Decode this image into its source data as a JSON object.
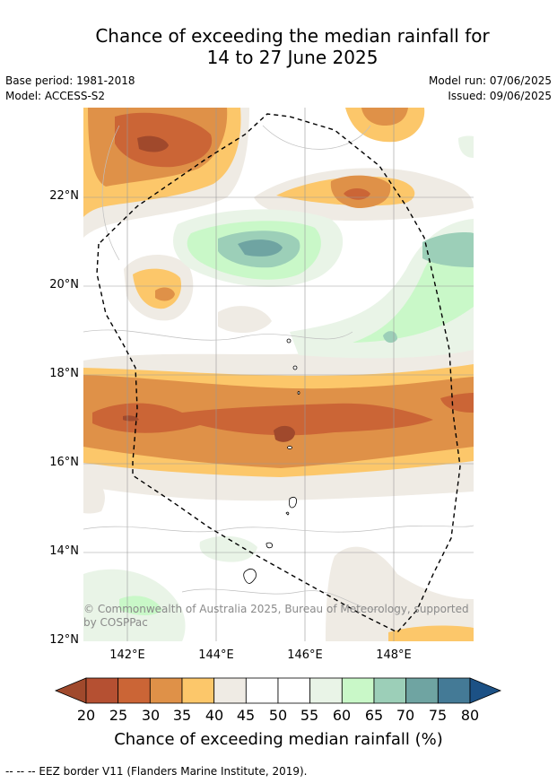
{
  "title_line1": "Chance of exceeding the median rainfall for",
  "title_line2": "14 to 27 June 2025",
  "left_meta": {
    "base_period": "Base period: 1981-2018",
    "model": "Model: ACCESS-S2"
  },
  "right_meta": {
    "model_run": "Model run: 07/06/2025",
    "issued": "Issued: 09/06/2025"
  },
  "lat_labels": [
    "22°N",
    "20°N",
    "18°N",
    "16°N",
    "14°N",
    "12°N"
  ],
  "lon_labels": [
    "142°E",
    "144°E",
    "146°E",
    "148°E"
  ],
  "copyright": "© Commonwealth of Australia 2025, Bureau of Meteorology, supported by COSPPac",
  "colorbar": {
    "ticks": [
      "20",
      "25",
      "30",
      "35",
      "40",
      "45",
      "50",
      "55",
      "60",
      "65",
      "70",
      "75",
      "80"
    ],
    "colors": [
      "#a0492c",
      "#b55032",
      "#cb6536",
      "#df9148",
      "#fcc76a",
      "#efebe4",
      "#ffffff",
      "#ffffff",
      "#e9f4e7",
      "#c9f8c8",
      "#9ccfb8",
      "#6fa4a2",
      "#447a96",
      "#1c5185"
    ],
    "title": "Chance of exceeding median rainfall (%)"
  },
  "footnote": "-- -- -- EEZ border V11 (Flanders Marine Institute, 2019)."
}
